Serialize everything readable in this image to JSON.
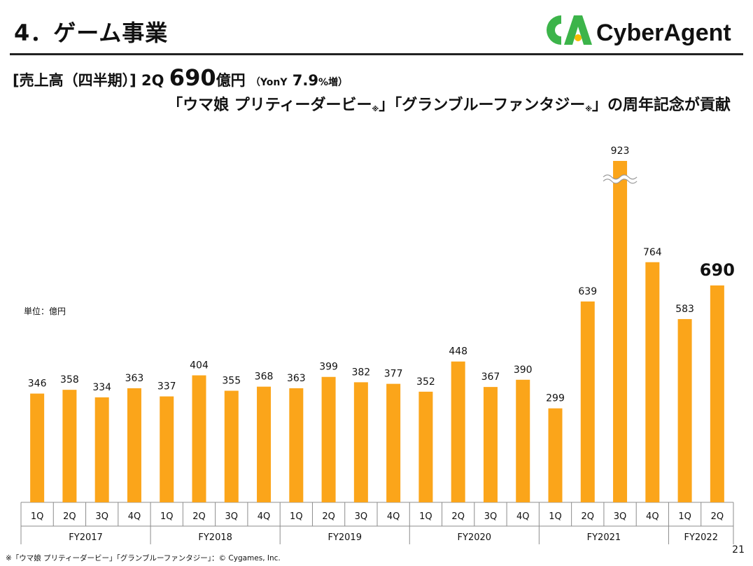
{
  "header": {
    "title": "4．ゲーム事業",
    "logo_text": "CyberAgent",
    "logo_mark": "CA"
  },
  "headline": {
    "prefix": "[売上高（四半期）]",
    "quarter": "2Q",
    "amount": "690",
    "unit": "億円",
    "growth_open": "（YonY",
    "growth_value": "7.9",
    "growth_close": "%増）",
    "line2_part1": "「ウマ娘 プリティーダービー",
    "note_mark": "※",
    "line2_part2": "」「グランブルーファンタジー",
    "line2_part3": "」の周年記念が貢献"
  },
  "unit_label": "単位：億円",
  "footnote": "※「ウマ娘 プリティーダービー」「グランブルーファンタジー」：© Cygames, Inc.",
  "page_number": "21",
  "colors": {
    "bar": "#FBA51A",
    "text": "#111111",
    "grid": "#8c8c8c",
    "logo_green": "#3CB44A",
    "logo_yellow": "#F6BE00"
  },
  "chart_data": {
    "type": "bar",
    "title": "",
    "ylabel": "億円",
    "ylim": [
      0,
      1000
    ],
    "axis_break": true,
    "categories": [
      "1Q",
      "2Q",
      "3Q",
      "4Q",
      "1Q",
      "2Q",
      "3Q",
      "4Q",
      "1Q",
      "2Q",
      "3Q",
      "4Q",
      "1Q",
      "2Q",
      "3Q",
      "4Q",
      "1Q",
      "2Q",
      "3Q",
      "4Q",
      "1Q",
      "2Q"
    ],
    "groups": [
      {
        "label": "FY2017",
        "count": 4
      },
      {
        "label": "FY2018",
        "count": 4
      },
      {
        "label": "FY2019",
        "count": 4
      },
      {
        "label": "FY2020",
        "count": 4
      },
      {
        "label": "FY2021",
        "count": 4
      },
      {
        "label": "FY2022",
        "count": 2
      }
    ],
    "values": [
      346,
      358,
      334,
      363,
      337,
      404,
      355,
      368,
      363,
      399,
      382,
      377,
      352,
      448,
      367,
      390,
      299,
      639,
      923,
      764,
      583,
      690
    ],
    "highlight_index": 21,
    "break_index": 18
  }
}
